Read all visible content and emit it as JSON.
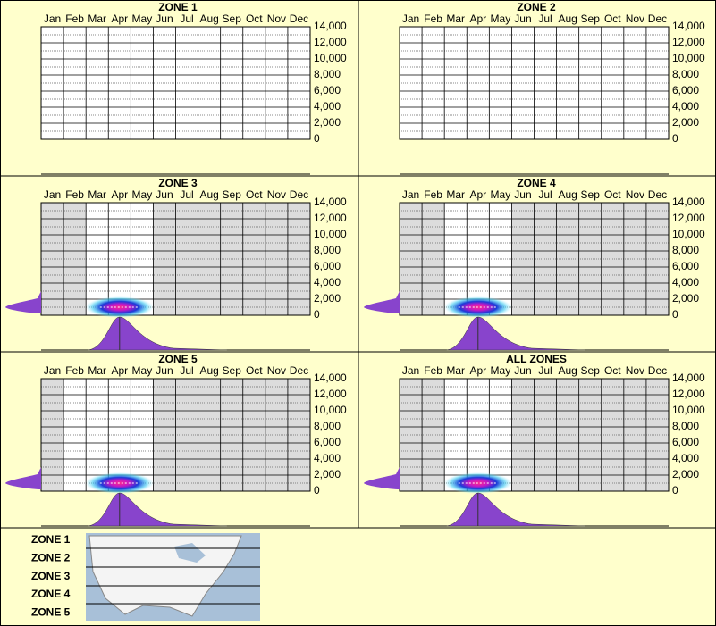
{
  "chart_data": [
    {
      "type": "heatmap",
      "title": "ZONE 1",
      "categories": [
        "Jan",
        "Feb",
        "Mar",
        "Apr",
        "May",
        "Jun",
        "Jul",
        "Aug",
        "Sep",
        "Oct",
        "Nov",
        "Dec"
      ],
      "ylim": [
        0,
        14000
      ],
      "yticks": [
        0,
        {
          "value": 2000,
          "label": "2,000"
        },
        {
          "value": 4000,
          "label": "4,000"
        },
        {
          "value": 6000,
          "label": "6,000"
        },
        {
          "value": 8000,
          "label": "8,000"
        },
        {
          "value": 10000,
          "label": "10,000"
        },
        {
          "value": 12000,
          "label": "12,000"
        },
        {
          "value": 14000,
          "label": "14,000"
        }
      ],
      "shaded": []
    },
    {
      "type": "heatmap",
      "title": "ZONE 2",
      "categories": [
        "Jan",
        "Feb",
        "Mar",
        "Apr",
        "May",
        "Jun",
        "Jul",
        "Aug",
        "Sep",
        "Oct",
        "Nov",
        "Dec"
      ],
      "ylim": [
        0,
        14000
      ],
      "yticks": [
        0,
        {
          "value": 2000,
          "label": "2,000"
        },
        {
          "value": 4000,
          "label": "4,000"
        },
        {
          "value": 6000,
          "label": "6,000"
        },
        {
          "value": 8000,
          "label": "8,000"
        },
        {
          "value": 10000,
          "label": "10,000"
        },
        {
          "value": 12000,
          "label": "12,000"
        },
        {
          "value": 14000,
          "label": "14,000"
        }
      ],
      "shaded": []
    },
    {
      "type": "heatmap",
      "title": "ZONE 3",
      "categories": [
        "Jan",
        "Feb",
        "Mar",
        "Apr",
        "May",
        "Jun",
        "Jul",
        "Aug",
        "Sep",
        "Oct",
        "Nov",
        "Dec"
      ],
      "ylim": [
        0,
        14000
      ],
      "yticks": [
        0,
        {
          "value": 2000,
          "label": "2,000"
        },
        {
          "value": 4000,
          "label": "4,000"
        },
        {
          "value": 6000,
          "label": "6,000"
        },
        {
          "value": 8000,
          "label": "8,000"
        },
        {
          "value": 10000,
          "label": "10,000"
        },
        {
          "value": 12000,
          "label": "12,000"
        },
        {
          "value": 14000,
          "label": "14,000"
        }
      ],
      "shaded": [
        "Jan",
        "Feb",
        "Jun",
        "Jul",
        "Aug",
        "Sep",
        "Oct",
        "Nov",
        "Dec"
      ],
      "x": [
        "Apr"
      ],
      "values": [
        1000
      ]
    },
    {
      "type": "heatmap",
      "title": "ZONE 4",
      "categories": [
        "Jan",
        "Feb",
        "Mar",
        "Apr",
        "May",
        "Jun",
        "Jul",
        "Aug",
        "Sep",
        "Oct",
        "Nov",
        "Dec"
      ],
      "ylim": [
        0,
        14000
      ],
      "yticks": [
        0,
        {
          "value": 2000,
          "label": "2,000"
        },
        {
          "value": 4000,
          "label": "4,000"
        },
        {
          "value": 6000,
          "label": "6,000"
        },
        {
          "value": 8000,
          "label": "8,000"
        },
        {
          "value": 10000,
          "label": "10,000"
        },
        {
          "value": 12000,
          "label": "12,000"
        },
        {
          "value": 14000,
          "label": "14,000"
        }
      ],
      "shaded": [
        "Jan",
        "Feb",
        "Jun",
        "Jul",
        "Aug",
        "Sep",
        "Oct",
        "Nov",
        "Dec"
      ],
      "x": [
        "Apr"
      ],
      "values": [
        1000
      ]
    },
    {
      "type": "heatmap",
      "title": "ZONE 5",
      "categories": [
        "Jan",
        "Feb",
        "Mar",
        "Apr",
        "May",
        "Jun",
        "Jul",
        "Aug",
        "Sep",
        "Oct",
        "Nov",
        "Dec"
      ],
      "ylim": [
        0,
        14000
      ],
      "yticks": [
        0,
        {
          "value": 2000,
          "label": "2,000"
        },
        {
          "value": 4000,
          "label": "4,000"
        },
        {
          "value": 6000,
          "label": "6,000"
        },
        {
          "value": 8000,
          "label": "8,000"
        },
        {
          "value": 10000,
          "label": "10,000"
        },
        {
          "value": 12000,
          "label": "12,000"
        },
        {
          "value": 14000,
          "label": "14,000"
        }
      ],
      "shaded": [
        "Jan",
        "Jun",
        "Jul",
        "Aug",
        "Sep",
        "Oct",
        "Nov",
        "Dec"
      ],
      "x": [
        "Apr"
      ],
      "values": [
        1000
      ]
    },
    {
      "type": "heatmap",
      "title": "ALL ZONES",
      "categories": [
        "Jan",
        "Feb",
        "Mar",
        "Apr",
        "May",
        "Jun",
        "Jul",
        "Aug",
        "Sep",
        "Oct",
        "Nov",
        "Dec"
      ],
      "ylim": [
        0,
        14000
      ],
      "yticks": [
        0,
        {
          "value": 2000,
          "label": "2,000"
        },
        {
          "value": 4000,
          "label": "4,000"
        },
        {
          "value": 6000,
          "label": "6,000"
        },
        {
          "value": 8000,
          "label": "8,000"
        },
        {
          "value": 10000,
          "label": "10,000"
        },
        {
          "value": 12000,
          "label": "12,000"
        },
        {
          "value": 14000,
          "label": "14,000"
        }
      ],
      "shaded": [
        "Jan",
        "Feb",
        "Jun",
        "Jul",
        "Aug",
        "Sep",
        "Oct",
        "Nov",
        "Dec"
      ],
      "x": [
        "Apr"
      ],
      "values": [
        1000
      ]
    }
  ],
  "legend": [
    "ZONE 1",
    "ZONE 2",
    "ZONE 3",
    "ZONE 4",
    "ZONE 5"
  ]
}
